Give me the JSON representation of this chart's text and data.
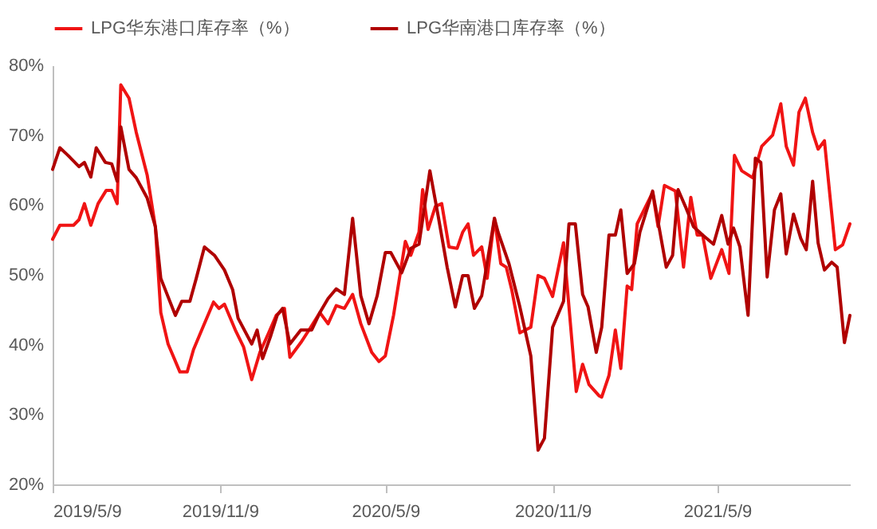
{
  "chart_data": {
    "type": "line",
    "legend": "top",
    "grid": false,
    "marker": "none",
    "line_style": "solid",
    "ylim": [
      20,
      80
    ],
    "yticks": [
      {
        "value": 20,
        "label": "20%"
      },
      {
        "value": 30,
        "label": "30%"
      },
      {
        "value": 40,
        "label": "40%"
      },
      {
        "value": 50,
        "label": "50%"
      },
      {
        "value": 60,
        "label": "60%"
      },
      {
        "value": 70,
        "label": "70%"
      },
      {
        "value": 80,
        "label": "80%"
      }
    ],
    "xlim": [
      "2019-05-09",
      "2021-10-02"
    ],
    "xticks": [
      {
        "value": "2019-05-09",
        "label": "2019/5/9"
      },
      {
        "value": "2019-11-09",
        "label": "2019/11/9"
      },
      {
        "value": "2020-05-09",
        "label": "2020/5/9"
      },
      {
        "value": "2020-11-09",
        "label": "2020/11/9"
      },
      {
        "value": "2021-05-09",
        "label": "2021/5/9"
      }
    ],
    "series": [
      {
        "name": "LPG华东港口库存率（%）",
        "color": "#f01414",
        "x": [
          "2019-05-09",
          "2019-05-17",
          "2019-06-01",
          "2019-06-07",
          "2019-06-13",
          "2019-06-20",
          "2019-06-28",
          "2019-07-07",
          "2019-07-13",
          "2019-07-19",
          "2019-07-23",
          "2019-08-01",
          "2019-08-09",
          "2019-08-21",
          "2019-08-30",
          "2019-09-05",
          "2019-09-13",
          "2019-09-26",
          "2019-10-04",
          "2019-10-11",
          "2019-10-20",
          "2019-11-02",
          "2019-11-08",
          "2019-11-14",
          "2019-11-26",
          "2019-12-05",
          "2019-12-14",
          "2019-12-23",
          "2020-01-01",
          "2020-01-10",
          "2020-01-19",
          "2020-01-25",
          "2020-02-06",
          "2020-02-15",
          "2020-02-27",
          "2020-03-07",
          "2020-03-16",
          "2020-03-25",
          "2020-04-03",
          "2020-04-12",
          "2020-04-24",
          "2020-05-02",
          "2020-05-09",
          "2020-05-18",
          "2020-05-31",
          "2020-06-06",
          "2020-06-15",
          "2020-06-19",
          "2020-06-25",
          "2020-07-03",
          "2020-07-10",
          "2020-07-18",
          "2020-07-27",
          "2020-08-02",
          "2020-08-08",
          "2020-08-14",
          "2020-08-23",
          "2020-08-29",
          "2020-09-06",
          "2020-09-13",
          "2020-09-19",
          "2020-09-25",
          "2020-10-04",
          "2020-10-16",
          "2020-10-24",
          "2020-10-31",
          "2020-11-09",
          "2020-11-21",
          "2020-11-27",
          "2020-12-05",
          "2020-12-12",
          "2020-12-19",
          "2020-12-30",
          "2021-01-02",
          "2021-01-10",
          "2021-01-17",
          "2021-01-23",
          "2021-01-30",
          "2021-02-04",
          "2021-02-10",
          "2021-02-27",
          "2021-03-05",
          "2021-03-12",
          "2021-03-24",
          "2021-04-02",
          "2021-04-10",
          "2021-04-17",
          "2021-04-23",
          "2021-05-02",
          "2021-05-14",
          "2021-05-22",
          "2021-05-28",
          "2021-06-05",
          "2021-06-17",
          "2021-06-27",
          "2021-07-09",
          "2021-07-18",
          "2021-07-24",
          "2021-08-01",
          "2021-08-07",
          "2021-08-14",
          "2021-08-22",
          "2021-08-28",
          "2021-09-04",
          "2021-09-16",
          "2021-09-24",
          "2021-10-02"
        ],
        "values": [
          55.1,
          57.1,
          57.1,
          57.9,
          60.2,
          57.1,
          60.2,
          62.1,
          62.1,
          60.2,
          77.2,
          75.3,
          70.4,
          64.3,
          56.9,
          44.6,
          40.1,
          36.1,
          36.1,
          39.3,
          42.1,
          46.1,
          45.2,
          45.8,
          42.1,
          39.7,
          35.0,
          38.9,
          41.5,
          44.2,
          45.2,
          38.2,
          40.3,
          42.1,
          44.6,
          43.0,
          45.6,
          45.2,
          47.2,
          43.0,
          38.9,
          37.6,
          38.4,
          44.2,
          54.8,
          52.8,
          56.1,
          62.2,
          56.5,
          59.8,
          60.2,
          54.0,
          53.8,
          56.1,
          57.3,
          52.8,
          54.0,
          49.5,
          58.1,
          51.6,
          51.1,
          47.9,
          41.7,
          42.5,
          49.9,
          49.5,
          46.9,
          54.6,
          45.4,
          33.3,
          37.2,
          34.3,
          32.7,
          32.5,
          35.6,
          42.1,
          36.6,
          48.4,
          47.9,
          57.3,
          61.8,
          56.9,
          62.8,
          62.0,
          51.1,
          61.1,
          55.7,
          55.7,
          49.5,
          53.6,
          50.2,
          67.1,
          64.9,
          63.9,
          68.4,
          70.0,
          74.5,
          68.4,
          65.7,
          73.3,
          75.3,
          70.4,
          68.0,
          69.2,
          53.6,
          54.3,
          57.3
        ]
      },
      {
        "name": "LPG华南港口库存率（%）",
        "color": "#b00000",
        "x": [
          "2019-05-09",
          "2019-05-17",
          "2019-05-26",
          "2019-06-07",
          "2019-06-13",
          "2019-06-20",
          "2019-06-26",
          "2019-07-06",
          "2019-07-13",
          "2019-07-19",
          "2019-07-23",
          "2019-08-01",
          "2019-08-09",
          "2019-08-21",
          "2019-08-30",
          "2019-09-05",
          "2019-09-21",
          "2019-09-28",
          "2019-10-07",
          "2019-10-14",
          "2019-10-23",
          "2019-11-03",
          "2019-11-14",
          "2019-11-23",
          "2019-11-29",
          "2019-12-14",
          "2019-12-20",
          "2019-12-26",
          "2020-01-04",
          "2020-01-11",
          "2020-01-17",
          "2020-01-25",
          "2020-02-06",
          "2020-02-18",
          "2020-02-27",
          "2020-03-07",
          "2020-03-16",
          "2020-03-25",
          "2020-04-03",
          "2020-04-12",
          "2020-04-21",
          "2020-04-30",
          "2020-05-09",
          "2020-05-15",
          "2020-05-27",
          "2020-06-06",
          "2020-06-15",
          "2020-06-27",
          "2020-07-06",
          "2020-07-16",
          "2020-07-25",
          "2020-08-02",
          "2020-08-08",
          "2020-08-15",
          "2020-08-23",
          "2020-09-06",
          "2020-09-10",
          "2020-09-22",
          "2020-10-04",
          "2020-10-16",
          "2020-10-24",
          "2020-10-31",
          "2020-11-09",
          "2020-11-21",
          "2020-11-27",
          "2020-12-04",
          "2020-12-12",
          "2020-12-18",
          "2020-12-27",
          "2021-01-02",
          "2021-01-10",
          "2021-01-17",
          "2021-01-23",
          "2021-01-30",
          "2021-02-07",
          "2021-02-13",
          "2021-02-27",
          "2021-03-06",
          "2021-03-14",
          "2021-03-21",
          "2021-03-27",
          "2021-04-04",
          "2021-04-13",
          "2021-04-23",
          "2021-05-05",
          "2021-05-14",
          "2021-05-21",
          "2021-05-27",
          "2021-06-03",
          "2021-06-12",
          "2021-06-20",
          "2021-06-26",
          "2021-07-03",
          "2021-07-11",
          "2021-07-18",
          "2021-07-24",
          "2021-08-01",
          "2021-08-09",
          "2021-08-15",
          "2021-08-22",
          "2021-08-28",
          "2021-09-04",
          "2021-09-12",
          "2021-09-18",
          "2021-09-26",
          "2021-10-02"
        ],
        "values": [
          65.1,
          68.2,
          67.1,
          65.5,
          66.1,
          64.0,
          68.2,
          66.1,
          65.9,
          63.4,
          71.2,
          65.1,
          63.9,
          61.0,
          56.9,
          49.5,
          44.2,
          46.2,
          46.2,
          49.5,
          54.0,
          52.8,
          50.7,
          47.9,
          43.8,
          40.1,
          42.1,
          38.0,
          41.3,
          44.2,
          45.2,
          40.1,
          42.1,
          42.1,
          44.6,
          46.6,
          48.0,
          47.2,
          58.1,
          47.0,
          43.0,
          47.0,
          53.2,
          53.2,
          50.3,
          53.8,
          54.4,
          64.9,
          58.5,
          51.1,
          45.4,
          49.9,
          49.9,
          45.2,
          47.0,
          58.1,
          56.1,
          51.6,
          45.4,
          38.4,
          24.9,
          26.6,
          42.5,
          46.2,
          57.3,
          57.3,
          47.2,
          45.4,
          38.9,
          42.5,
          55.7,
          55.7,
          59.3,
          50.2,
          51.6,
          56.1,
          62.0,
          56.9,
          51.1,
          52.8,
          62.2,
          59.8,
          56.9,
          55.7,
          54.4,
          58.5,
          54.4,
          56.7,
          54.0,
          44.2,
          66.7,
          66.1,
          49.7,
          59.3,
          61.6,
          53.0,
          58.7,
          55.2,
          53.6,
          63.4,
          54.6,
          50.7,
          51.8,
          51.1,
          40.3,
          44.2
        ]
      }
    ]
  }
}
